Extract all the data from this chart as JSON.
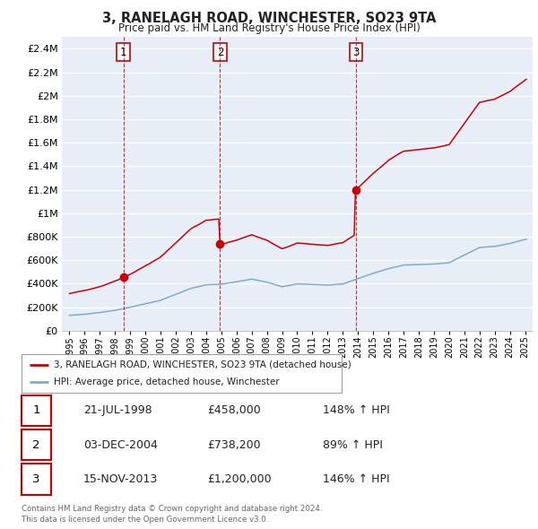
{
  "title": "3, RANELAGH ROAD, WINCHESTER, SO23 9TA",
  "subtitle": "Price paid vs. HM Land Registry's House Price Index (HPI)",
  "legend_label_red": "3, RANELAGH ROAD, WINCHESTER, SO23 9TA (detached house)",
  "legend_label_blue": "HPI: Average price, detached house, Winchester",
  "footer1": "Contains HM Land Registry data © Crown copyright and database right 2024.",
  "footer2": "This data is licensed under the Open Government Licence v3.0.",
  "sales": [
    {
      "num": 1,
      "date": "21-JUL-1998",
      "price": "£458,000",
      "hpi": "148% ↑ HPI",
      "year": 1998.55
    },
    {
      "num": 2,
      "date": "03-DEC-2004",
      "price": "£738,200",
      "hpi": "89% ↑ HPI",
      "year": 2004.92
    },
    {
      "num": 3,
      "date": "15-NOV-2013",
      "price": "£1,200,000",
      "hpi": "146% ↑ HPI",
      "year": 2013.87
    }
  ],
  "ylim": [
    0,
    2500000
  ],
  "yticks": [
    0,
    200000,
    400000,
    600000,
    800000,
    1000000,
    1200000,
    1400000,
    1600000,
    1800000,
    2000000,
    2200000,
    2400000
  ],
  "ytick_labels": [
    "£0",
    "£200K",
    "£400K",
    "£600K",
    "£800K",
    "£1M",
    "£1.2M",
    "£1.4M",
    "£1.6M",
    "£1.8M",
    "£2M",
    "£2.2M",
    "£2.4M"
  ],
  "xlim_start": 1994.5,
  "xlim_end": 2025.5,
  "background_color": "#ffffff",
  "chart_bg_color": "#e8eef7",
  "grid_color": "#ffffff",
  "red_color": "#cc0000",
  "blue_color": "#7faacc",
  "dashed_line_color": "#cc0000",
  "sale_years": [
    1998.55,
    2004.92,
    2013.87
  ],
  "sale_prices": [
    458000,
    738200,
    1200000
  ]
}
